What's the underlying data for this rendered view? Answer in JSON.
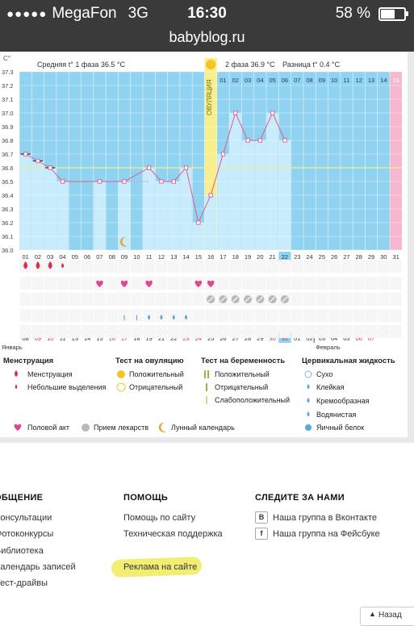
{
  "status_bar": {
    "carrier": "MegaFon",
    "network": "3G",
    "time": "16:30",
    "battery": "58 %",
    "url": "babyblog.ru"
  },
  "chart_header": {
    "unit": "C°",
    "phase1_avg": "Средняя t° 1 фаза 36.5 °C",
    "phase2_avg": "2 фаза 36.9 °C",
    "difference": "Разница t° 0.4 °C",
    "ovulation_label": "ОВУЛЯЦИЯ"
  },
  "chart_data": {
    "type": "line",
    "ylim": [
      36.0,
      37.3
    ],
    "y_ticks": [
      "37.3",
      "37.2",
      "37.1",
      "37.0",
      "36.9",
      "36.8",
      "36.7",
      "36.6",
      "36.5",
      "36.4",
      "36.3",
      "36.2",
      "36.1",
      "36.0"
    ],
    "x_cycle_days": [
      "01",
      "02",
      "03",
      "04",
      "05",
      "06",
      "07",
      "08",
      "09",
      "10",
      "11",
      "12",
      "13",
      "14",
      "15",
      "16",
      "17",
      "18",
      "19",
      "20",
      "21",
      "22",
      "23",
      "24",
      "25",
      "26",
      "27",
      "28",
      "29",
      "30",
      "31"
    ],
    "phase2_day_labels": [
      "01",
      "02",
      "03",
      "04",
      "05",
      "06",
      "07",
      "08",
      "09",
      "10",
      "11",
      "12",
      "13",
      "14",
      "15"
    ],
    "highlighted_day": "22",
    "cover_line": 36.6,
    "temperatures": [
      36.7,
      36.65,
      36.6,
      36.5,
      null,
      null,
      36.5,
      null,
      36.5,
      null,
      36.6,
      36.5,
      36.5,
      36.6,
      36.2,
      36.4,
      36.7,
      37.0,
      36.8,
      36.8,
      37.0,
      36.8
    ],
    "dates_jan": [
      "08",
      "09",
      "10",
      "11",
      "13",
      "14",
      "15",
      "16",
      "17",
      "18",
      "19",
      "21",
      "22",
      "23",
      "24",
      "25",
      "26",
      "27",
      "28",
      "29",
      "30",
      "31"
    ],
    "dates_feb": [
      "01",
      "02",
      "03",
      "04",
      "05",
      "06",
      "07"
    ],
    "weekend_dates": [
      "09",
      "10",
      "16",
      "17",
      "23",
      "24",
      "30",
      "31",
      "06",
      "07"
    ],
    "month_labels": [
      "Январь",
      "Февраль"
    ]
  },
  "marks": {
    "menstruation_days": [
      1,
      2,
      3
    ],
    "spotting_days": [
      4
    ],
    "intercourse_days": [
      7,
      9,
      11,
      15,
      16
    ],
    "medication_days": [
      16,
      17,
      18,
      19,
      20,
      21,
      22
    ],
    "mucus_sticky_days": [
      9,
      10
    ],
    "mucus_watery_days": [
      11,
      12
    ],
    "mucus_eggwhite_days": [
      13,
      14
    ],
    "lunar_day": 9
  },
  "legend": {
    "menstruation_title": "Менструация",
    "menstruation": "Менструация",
    "spotting": "Небольшие выделения",
    "ovulation_test_title": "Тест на овуляцию",
    "ov_positive": "Положительный",
    "ov_negative": "Отрицательный",
    "pregnancy_test_title": "Тест на беременность",
    "pr_positive": "Положительный",
    "pr_negative": "Отрицательный",
    "pr_weak": "Слабоположительный",
    "cervical_title": "Цервикальная жидкость",
    "dry": "Сухо",
    "sticky": "Клейкая",
    "creamy": "Кремообразная",
    "watery": "Водянистая",
    "eggwhite": "Яичный белок",
    "intercourse": "Половой акт",
    "medication": "Прием лекарств",
    "lunar": "Лунный календарь"
  },
  "footer": {
    "col1": {
      "title": "ОБЩЕНИЕ",
      "items": [
        "Консультации",
        "Фотоконкурсы",
        "Библиотека",
        "Календарь записей",
        "Тест-драйвы"
      ]
    },
    "col2": {
      "title": "ПОМОЩЬ",
      "items": [
        "Помощь по сайту",
        "Техническая поддержка",
        "Реклама на сайте"
      ]
    },
    "col3": {
      "title": "СЛЕДИТЕ ЗА НАМИ",
      "items": [
        "Наша группа в Вконтакте",
        "Наша группа на Фейсбуке"
      ]
    },
    "back_label": "Назад"
  },
  "colors": {
    "sky": "#8fd3f1",
    "bar": "#c8ecfb",
    "ovulation": "#f8ee8c",
    "line": "#e05b8f",
    "pink": "#f7b8cf",
    "accent_red": "#d8304a"
  }
}
